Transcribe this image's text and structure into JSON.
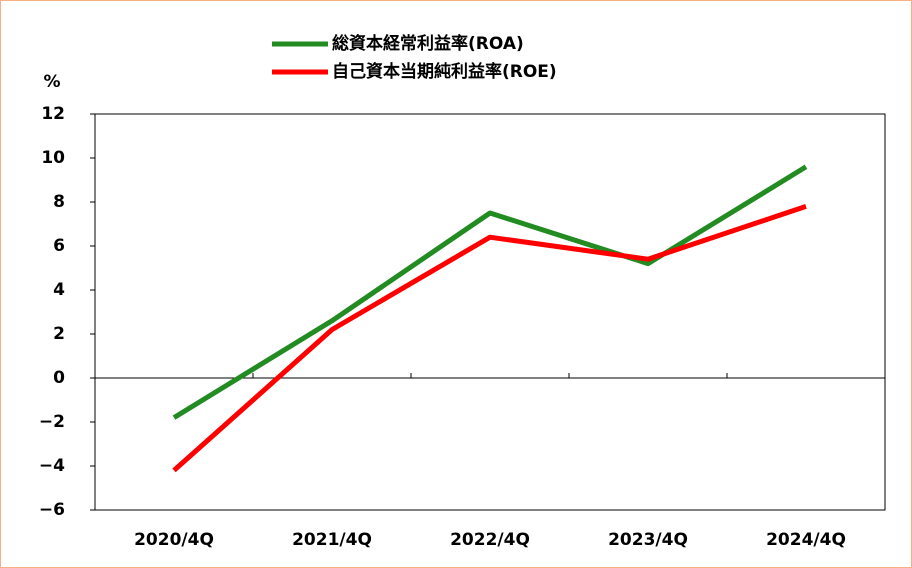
{
  "chart_data": {
    "type": "line",
    "y_label": "%",
    "categories": [
      "2020/4Q",
      "2021/4Q",
      "2022/4Q",
      "2023/4Q",
      "2024/4Q"
    ],
    "series": [
      {
        "name": "総資本経常利益率(ROA)",
        "color": "#228b22",
        "values": [
          -1.8,
          2.6,
          7.5,
          5.2,
          9.6
        ]
      },
      {
        "name": "自己資本当期純利益率(ROE)",
        "color": "#ff0000",
        "values": [
          -4.2,
          2.2,
          6.4,
          5.4,
          7.8
        ]
      }
    ],
    "ylim": [
      -6,
      12
    ],
    "yticks": [
      {
        "value": -6,
        "label": "−6"
      },
      {
        "value": -4,
        "label": "−4"
      },
      {
        "value": -2,
        "label": "−2"
      },
      0,
      2,
      4,
      6,
      8,
      10,
      12
    ],
    "grid": false,
    "legend": "top"
  }
}
